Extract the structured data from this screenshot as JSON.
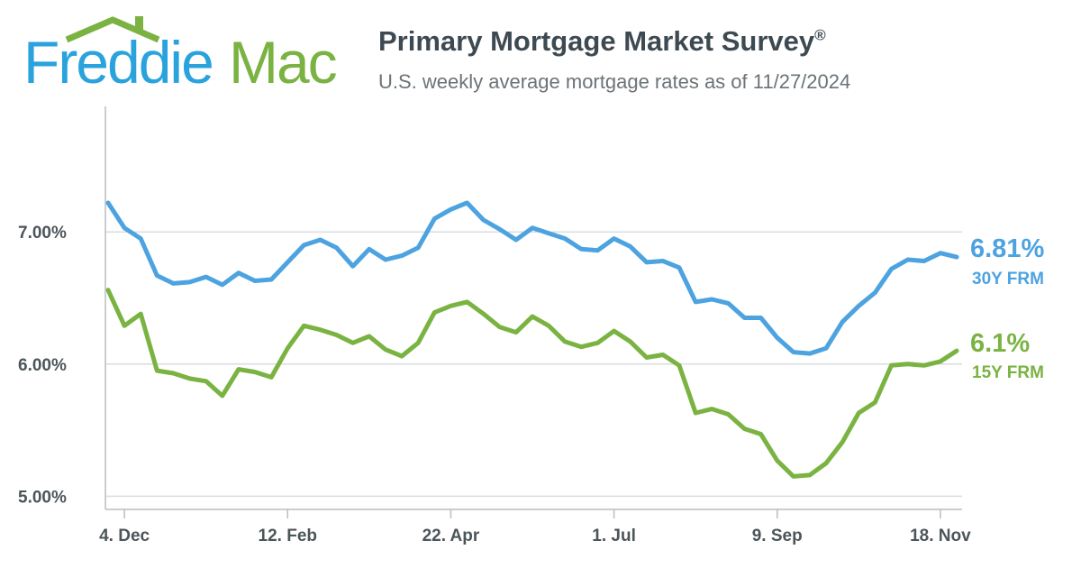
{
  "logo": {
    "part1": "Freddie",
    "part2": "Mac"
  },
  "header": {
    "title": "Primary Mortgage Market Survey",
    "title_mark": "®",
    "subtitle": "U.S. weekly average mortgage rates as of 11/27/2024"
  },
  "colors": {
    "series_30y": "#4da3e0",
    "series_15y": "#7ab342",
    "grid": "#d9dde0",
    "axis": "#b8bec2",
    "text": "#4c5559"
  },
  "chart_data": {
    "type": "line",
    "title": "",
    "xlabel": "",
    "ylabel": "",
    "ylim": [
      4.9,
      7.95
    ],
    "y_ticks": [
      5.0,
      6.0,
      7.0
    ],
    "y_tick_labels": [
      "5.00%",
      "6.00%",
      "7.00%"
    ],
    "x_tick_labels": [
      "4. Dec",
      "12. Feb",
      "22. Apr",
      "1. Jul",
      "9. Sep",
      "18. Nov"
    ],
    "x_tick_indices": [
      1,
      11,
      21,
      31,
      41,
      51
    ],
    "dates": [
      "11/30/2023",
      "12/7/2023",
      "12/14/2023",
      "12/21/2023",
      "12/28/2023",
      "1/4/2024",
      "1/11/2024",
      "1/18/2024",
      "1/25/2024",
      "2/1/2024",
      "2/8/2024",
      "2/15/2024",
      "2/22/2024",
      "2/29/2024",
      "3/7/2024",
      "3/14/2024",
      "3/21/2024",
      "3/28/2024",
      "4/4/2024",
      "4/11/2024",
      "4/18/2024",
      "4/25/2024",
      "5/2/2024",
      "5/9/2024",
      "5/16/2024",
      "5/23/2024",
      "5/30/2024",
      "6/6/2024",
      "6/13/2024",
      "6/20/2024",
      "6/27/2024",
      "7/3/2024",
      "7/11/2024",
      "7/18/2024",
      "7/25/2024",
      "8/1/2024",
      "8/8/2024",
      "8/15/2024",
      "8/22/2024",
      "8/29/2024",
      "9/5/2024",
      "9/12/2024",
      "9/19/2024",
      "9/26/2024",
      "10/3/2024",
      "10/10/2024",
      "10/17/2024",
      "10/24/2024",
      "10/31/2024",
      "11/7/2024",
      "11/14/2024",
      "11/21/2024",
      "11/27/2024"
    ],
    "grid": true,
    "legend": "right-end-labels",
    "series": [
      {
        "name": "30Y FRM",
        "end_label": "6.81%",
        "values": [
          7.22,
          7.03,
          6.95,
          6.67,
          6.61,
          6.62,
          6.66,
          6.6,
          6.69,
          6.63,
          6.64,
          6.77,
          6.9,
          6.94,
          6.88,
          6.74,
          6.87,
          6.79,
          6.82,
          6.88,
          7.1,
          7.17,
          7.22,
          7.09,
          7.02,
          6.94,
          7.03,
          6.99,
          6.95,
          6.87,
          6.86,
          6.95,
          6.89,
          6.77,
          6.78,
          6.73,
          6.47,
          6.49,
          6.46,
          6.35,
          6.35,
          6.2,
          6.09,
          6.08,
          6.12,
          6.32,
          6.44,
          6.54,
          6.72,
          6.79,
          6.78,
          6.84,
          6.81
        ]
      },
      {
        "name": "15Y FRM",
        "end_label": "6.1%",
        "values": [
          6.56,
          6.29,
          6.38,
          5.95,
          5.93,
          5.89,
          5.87,
          5.76,
          5.96,
          5.94,
          5.9,
          6.12,
          6.29,
          6.26,
          6.22,
          6.16,
          6.21,
          6.11,
          6.06,
          6.16,
          6.39,
          6.44,
          6.47,
          6.38,
          6.28,
          6.24,
          6.36,
          6.29,
          6.17,
          6.13,
          6.16,
          6.25,
          6.17,
          6.05,
          6.07,
          5.99,
          5.63,
          5.66,
          5.62,
          5.51,
          5.47,
          5.27,
          5.15,
          5.16,
          5.25,
          5.41,
          5.63,
          5.71,
          5.99,
          6.0,
          5.99,
          6.02,
          6.1
        ]
      }
    ]
  }
}
